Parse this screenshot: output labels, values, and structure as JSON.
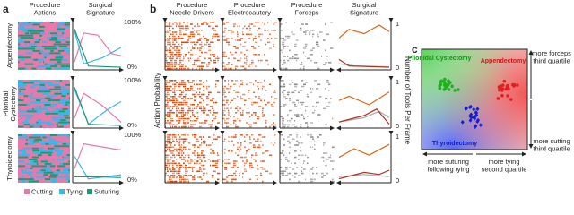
{
  "panel_a": {
    "label": "a",
    "column_titles": [
      [
        "Procedure",
        "Actions"
      ],
      [
        "Surgical",
        "Signature"
      ]
    ],
    "rows": [
      {
        "name": [
          "Appendectomy"
        ],
        "axis_top": "100%",
        "axis_bottom": "0%"
      },
      {
        "name": [
          "Pilonidal",
          "Cystectomy"
        ],
        "axis_top": "100%",
        "axis_bottom": "0%"
      },
      {
        "name": [
          "Thyroidectomy"
        ],
        "axis_top": "100%",
        "axis_bottom": "0%"
      }
    ],
    "legend": [
      "Cutting",
      "Tying",
      "Suturing"
    ]
  },
  "panel_b": {
    "label": "b",
    "column_titles": [
      [
        "Procedure",
        "Needle Drivers"
      ],
      [
        "Procedure",
        "Electrocautery"
      ],
      [
        "Procedure",
        "Forceps"
      ],
      [
        "Surgical",
        "Signature"
      ]
    ],
    "left_axis_label": "Action Probability",
    "right_axis_label": "Number of Tools Per Frame",
    "rows": [
      {
        "axis_top": "1",
        "axis_bottom": "0"
      },
      {
        "axis_top": "1",
        "axis_bottom": "0"
      },
      {
        "axis_top": "1",
        "axis_bottom": "0"
      }
    ]
  },
  "panel_c": {
    "label": "c",
    "clusters": [
      "Pilonidal Cystectomy",
      "Appendectomy",
      "Thyroidectomy"
    ],
    "right_labels": [
      [
        "more forceps",
        "third quartile"
      ],
      [
        "more cutting",
        "third quartile"
      ]
    ],
    "bottom_labels": [
      [
        "more suturing",
        "following tying"
      ],
      [
        "more tying",
        "second quartile"
      ]
    ]
  }
}
